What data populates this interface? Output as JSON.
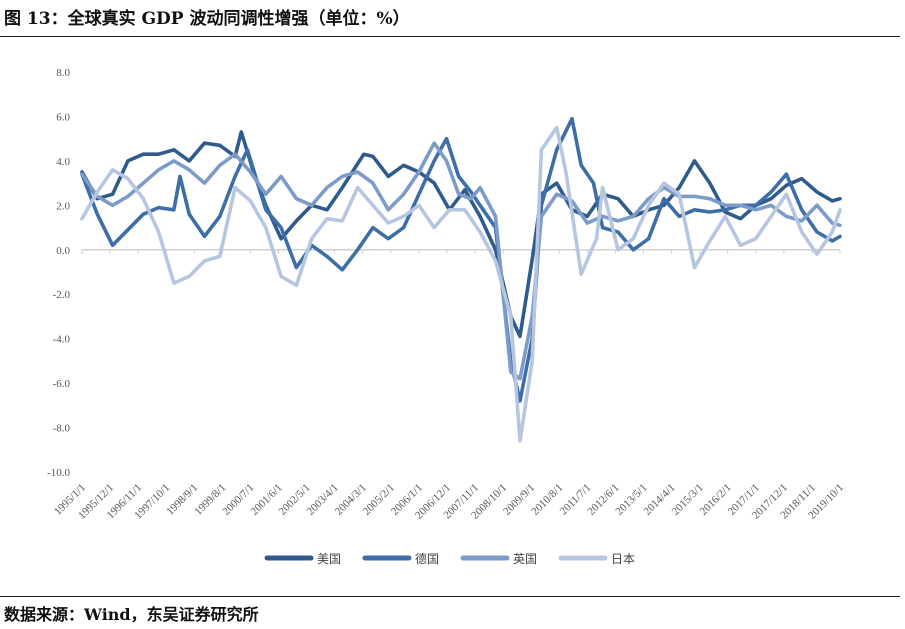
{
  "title": "图 13：全球真实 GDP 波动同调性增强（单位：%）",
  "source": "数据来源：Wind，东吴证券研究所",
  "chart_data": {
    "type": "line",
    "title": "全球真实 GDP 波动同调性增强（单位：%）",
    "xlabel": "",
    "ylabel": "",
    "ylim": [
      -10,
      8
    ],
    "xlim": [
      1995.0,
      2019.75
    ],
    "y_ticks": [
      "8.0",
      "6.0",
      "4.0",
      "2.0",
      "0.0",
      "-2.0",
      "-4.0",
      "-6.0",
      "-8.0",
      "-10.0"
    ],
    "x_tick_labels": [
      "1995/1/1",
      "1995/12/1",
      "1996/11/1",
      "1997/10/1",
      "1998/9/1",
      "1999/8/1",
      "2000/7/1",
      "2001/6/1",
      "2002/5/1",
      "2003/4/1",
      "2004/3/1",
      "2005/2/1",
      "2006/1/1",
      "2006/12/1",
      "2007/11/1",
      "2008/10/1",
      "2009/9/1",
      "2010/8/1",
      "2011/7/1",
      "2012/6/1",
      "2013/5/1",
      "2014/4/1",
      "2015/3/1",
      "2016/2/1",
      "2017/1/1",
      "2017/12/1",
      "2018/11/1",
      "2019/10/1"
    ],
    "legend_position": "bottom",
    "grid": false,
    "series": [
      {
        "name": "美国",
        "color": "#2f5b8c",
        "points": [
          [
            1995,
            3.5
          ],
          [
            1995.5,
            2.3
          ],
          [
            1996,
            2.5
          ],
          [
            1996.5,
            4.0
          ],
          [
            1997,
            4.3
          ],
          [
            1997.5,
            4.3
          ],
          [
            1998,
            4.5
          ],
          [
            1998.5,
            4.0
          ],
          [
            1999,
            4.8
          ],
          [
            1999.5,
            4.7
          ],
          [
            2000,
            4.2
          ],
          [
            2000.2,
            5.3
          ],
          [
            2000.6,
            3.5
          ],
          [
            2001,
            2.0
          ],
          [
            2001.5,
            0.5
          ],
          [
            2002,
            1.3
          ],
          [
            2002.5,
            2.0
          ],
          [
            2003,
            1.8
          ],
          [
            2003.5,
            2.8
          ],
          [
            2004.2,
            4.3
          ],
          [
            2004.5,
            4.2
          ],
          [
            2005,
            3.3
          ],
          [
            2005.5,
            3.8
          ],
          [
            2006,
            3.5
          ],
          [
            2006.5,
            3.0
          ],
          [
            2007,
            1.8
          ],
          [
            2007.5,
            2.7
          ],
          [
            2008,
            1.5
          ],
          [
            2008.5,
            0.0
          ],
          [
            2009,
            -3.0
          ],
          [
            2009.3,
            -3.9
          ],
          [
            2009.75,
            0.0
          ],
          [
            2010,
            2.5
          ],
          [
            2010.5,
            3.0
          ],
          [
            2011,
            1.8
          ],
          [
            2011.5,
            1.5
          ],
          [
            2012,
            2.5
          ],
          [
            2012.5,
            2.3
          ],
          [
            2013,
            1.5
          ],
          [
            2013.5,
            1.8
          ],
          [
            2014,
            2.0
          ],
          [
            2014.5,
            2.8
          ],
          [
            2015,
            4.0
          ],
          [
            2015.5,
            3.0
          ],
          [
            2016,
            1.7
          ],
          [
            2016.5,
            1.4
          ],
          [
            2017,
            2.0
          ],
          [
            2017.5,
            2.3
          ],
          [
            2018,
            2.9
          ],
          [
            2018.5,
            3.2
          ],
          [
            2019,
            2.6
          ],
          [
            2019.5,
            2.2
          ],
          [
            2019.75,
            2.3
          ]
        ]
      },
      {
        "name": "德国",
        "color": "#3d6ea8",
        "points": [
          [
            1995,
            3.4
          ],
          [
            1995.5,
            1.6
          ],
          [
            1996,
            0.2
          ],
          [
            1996.5,
            0.9
          ],
          [
            1997,
            1.6
          ],
          [
            1997.5,
            1.9
          ],
          [
            1998,
            1.8
          ],
          [
            1998.2,
            3.3
          ],
          [
            1998.5,
            1.6
          ],
          [
            1999,
            0.6
          ],
          [
            1999.5,
            1.5
          ],
          [
            2000,
            3.3
          ],
          [
            2000.4,
            4.5
          ],
          [
            2001,
            1.8
          ],
          [
            2001.5,
            1.0
          ],
          [
            2002,
            -0.8
          ],
          [
            2002.5,
            0.2
          ],
          [
            2003,
            -0.3
          ],
          [
            2003.5,
            -0.9
          ],
          [
            2004,
            0.0
          ],
          [
            2004.5,
            1.0
          ],
          [
            2005,
            0.5
          ],
          [
            2005.5,
            1.0
          ],
          [
            2006,
            2.5
          ],
          [
            2006.5,
            4.0
          ],
          [
            2006.9,
            5.0
          ],
          [
            2007.3,
            3.3
          ],
          [
            2007.7,
            2.6
          ],
          [
            2008,
            2.0
          ],
          [
            2008.5,
            1.0
          ],
          [
            2009,
            -5.0
          ],
          [
            2009.3,
            -6.8
          ],
          [
            2009.7,
            -4.0
          ],
          [
            2010,
            2.0
          ],
          [
            2010.5,
            4.5
          ],
          [
            2011,
            5.9
          ],
          [
            2011.3,
            3.8
          ],
          [
            2011.7,
            3.0
          ],
          [
            2012,
            1.0
          ],
          [
            2012.5,
            0.8
          ],
          [
            2013,
            0.0
          ],
          [
            2013.5,
            0.5
          ],
          [
            2014,
            2.3
          ],
          [
            2014.5,
            1.5
          ],
          [
            2015,
            1.8
          ],
          [
            2015.5,
            1.7
          ],
          [
            2016,
            1.8
          ],
          [
            2016.5,
            2.0
          ],
          [
            2017,
            2.0
          ],
          [
            2017.5,
            2.6
          ],
          [
            2018,
            3.4
          ],
          [
            2018.5,
            1.8
          ],
          [
            2019,
            0.8
          ],
          [
            2019.5,
            0.4
          ],
          [
            2019.75,
            0.6
          ]
        ]
      },
      {
        "name": "英国",
        "color": "#7b9bc9",
        "points": [
          [
            1995,
            3.4
          ],
          [
            1995.5,
            2.4
          ],
          [
            1996,
            2.0
          ],
          [
            1996.5,
            2.4
          ],
          [
            1997,
            3.0
          ],
          [
            1997.5,
            3.6
          ],
          [
            1998,
            4.0
          ],
          [
            1998.5,
            3.6
          ],
          [
            1999,
            3.0
          ],
          [
            1999.5,
            3.8
          ],
          [
            2000,
            4.3
          ],
          [
            2000.5,
            3.5
          ],
          [
            2001,
            2.5
          ],
          [
            2001.5,
            3.3
          ],
          [
            2002,
            2.3
          ],
          [
            2002.5,
            2.0
          ],
          [
            2003,
            2.8
          ],
          [
            2003.5,
            3.3
          ],
          [
            2004,
            3.5
          ],
          [
            2004.5,
            3.0
          ],
          [
            2005,
            1.8
          ],
          [
            2005.5,
            2.5
          ],
          [
            2006,
            3.5
          ],
          [
            2006.5,
            4.8
          ],
          [
            2006.9,
            4.0
          ],
          [
            2007.3,
            2.5
          ],
          [
            2007.7,
            2.3
          ],
          [
            2008,
            2.8
          ],
          [
            2008.5,
            1.5
          ],
          [
            2009,
            -5.5
          ],
          [
            2009.3,
            -5.8
          ],
          [
            2009.7,
            -3.0
          ],
          [
            2010,
            1.5
          ],
          [
            2010.5,
            2.5
          ],
          [
            2011,
            2.2
          ],
          [
            2011.5,
            1.2
          ],
          [
            2012,
            1.5
          ],
          [
            2012.5,
            1.3
          ],
          [
            2013,
            1.5
          ],
          [
            2013.5,
            2.3
          ],
          [
            2014,
            2.8
          ],
          [
            2014.5,
            2.4
          ],
          [
            2015,
            2.4
          ],
          [
            2015.5,
            2.3
          ],
          [
            2016,
            2.0
          ],
          [
            2016.5,
            2.0
          ],
          [
            2017,
            1.8
          ],
          [
            2017.5,
            2.0
          ],
          [
            2018,
            1.5
          ],
          [
            2018.5,
            1.3
          ],
          [
            2019,
            2.0
          ],
          [
            2019.5,
            1.2
          ],
          [
            2019.75,
            1.1
          ]
        ]
      },
      {
        "name": "日本",
        "color": "#b7c6e0",
        "points": [
          [
            1995,
            1.4
          ],
          [
            1995.5,
            2.6
          ],
          [
            1996,
            3.6
          ],
          [
            1996.5,
            3.2
          ],
          [
            1997,
            2.3
          ],
          [
            1997.5,
            0.8
          ],
          [
            1998,
            -1.5
          ],
          [
            1998.5,
            -1.2
          ],
          [
            1999,
            -0.5
          ],
          [
            1999.5,
            -0.3
          ],
          [
            2000,
            2.8
          ],
          [
            2000.5,
            2.2
          ],
          [
            2001,
            1.0
          ],
          [
            2001.5,
            -1.2
          ],
          [
            2002,
            -1.6
          ],
          [
            2002.5,
            0.5
          ],
          [
            2003,
            1.4
          ],
          [
            2003.5,
            1.3
          ],
          [
            2004,
            2.8
          ],
          [
            2004.5,
            2.0
          ],
          [
            2005,
            1.2
          ],
          [
            2005.5,
            1.5
          ],
          [
            2006,
            2.0
          ],
          [
            2006.5,
            1.0
          ],
          [
            2007,
            1.8
          ],
          [
            2007.5,
            1.8
          ],
          [
            2008,
            0.8
          ],
          [
            2008.5,
            -0.5
          ],
          [
            2009,
            -3.0
          ],
          [
            2009.3,
            -8.6
          ],
          [
            2009.7,
            -5.0
          ],
          [
            2010,
            4.5
          ],
          [
            2010.5,
            5.5
          ],
          [
            2010.8,
            3.5
          ],
          [
            2011.3,
            -1.1
          ],
          [
            2011.8,
            0.5
          ],
          [
            2012,
            2.8
          ],
          [
            2012.5,
            0.0
          ],
          [
            2013,
            0.5
          ],
          [
            2013.5,
            2.0
          ],
          [
            2014,
            3.0
          ],
          [
            2014.5,
            2.5
          ],
          [
            2015,
            -0.8
          ],
          [
            2015.5,
            0.4
          ],
          [
            2016,
            1.5
          ],
          [
            2016.5,
            0.2
          ],
          [
            2017,
            0.5
          ],
          [
            2017.5,
            1.5
          ],
          [
            2018,
            2.5
          ],
          [
            2018.5,
            0.8
          ],
          [
            2019,
            -0.2
          ],
          [
            2019.5,
            0.8
          ],
          [
            2019.75,
            1.8
          ]
        ]
      }
    ]
  }
}
